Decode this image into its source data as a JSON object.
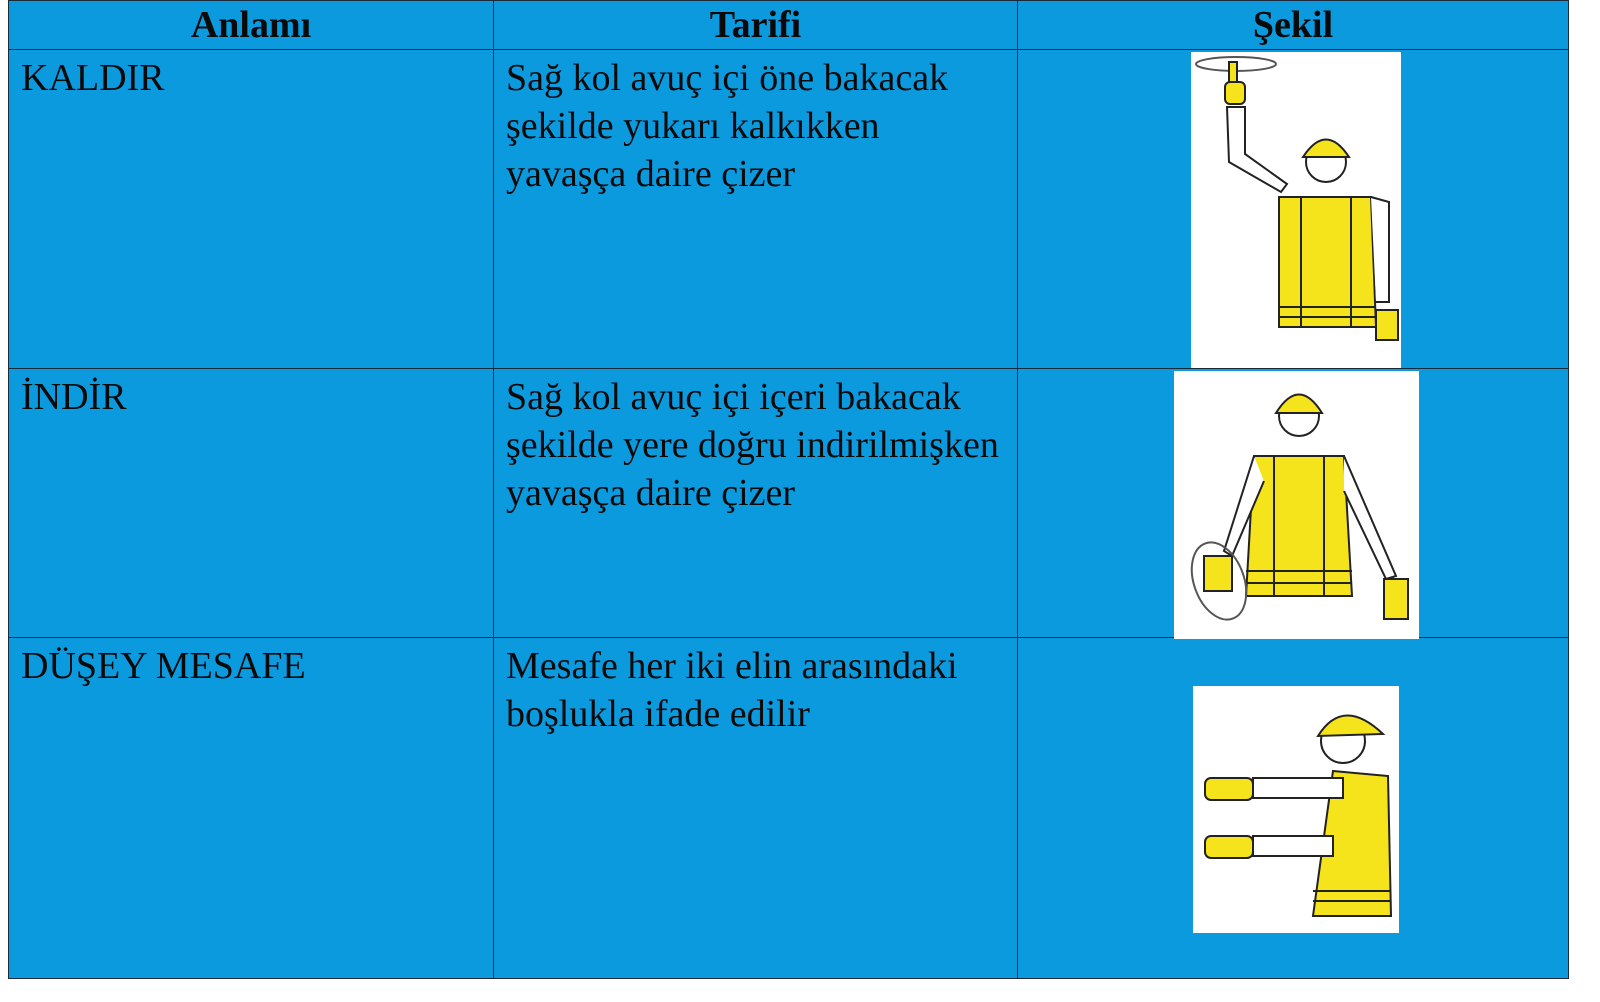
{
  "table": {
    "headers": [
      "Anlamı",
      "Tarifi",
      "Şekil"
    ],
    "rows": [
      [
        "KALDIR",
        "Sağ kol avuç içi öne bakacak şekilde yukarı kalkıkken yavaşça daire çizer"
      ],
      [
        "İNDİR",
        "Sağ kol avuç içi içeri bakacak şekilde yere doğru indirilmişken yavaşça daire çizer"
      ],
      [
        "DÜŞEY MESAFE",
        "Mesafe her iki elin arasındaki boşlukla ifade edilir"
      ]
    ]
  }
}
